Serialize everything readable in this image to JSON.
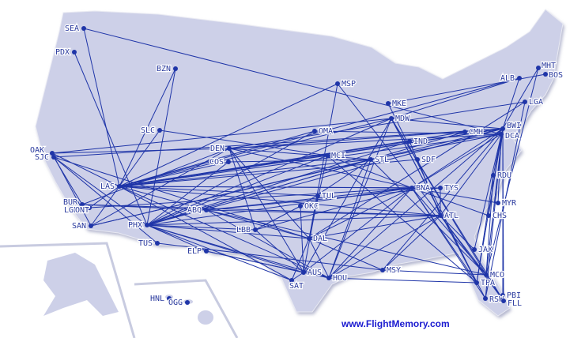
{
  "colors": {
    "land": "#cdd0e8",
    "route": "#1f35a8",
    "airport": "#1f35a8",
    "border": "#a8abc0"
  },
  "website": "www.FlightMemory.com",
  "airports": [
    {
      "code": "SEA",
      "lon": -122.3,
      "lat": 47.4
    },
    {
      "code": "PDX",
      "lon": -122.6,
      "lat": 45.6
    },
    {
      "code": "BZN",
      "lon": -111.2,
      "lat": 45.8
    },
    {
      "code": "MSP",
      "lon": -93.2,
      "lat": 44.9
    },
    {
      "code": "MKE",
      "lon": -87.9,
      "lat": 42.9
    },
    {
      "code": "MDW",
      "lon": -87.8,
      "lat": 41.8
    },
    {
      "code": "ALB",
      "lon": -73.8,
      "lat": 42.7
    },
    {
      "code": "MHT",
      "lon": -71.4,
      "lat": 42.9
    },
    {
      "code": "BOS",
      "lon": -71.0,
      "lat": 42.4
    },
    {
      "code": "LGA",
      "lon": -73.9,
      "lat": 40.8
    },
    {
      "code": "SLC",
      "lon": -112.0,
      "lat": 40.8
    },
    {
      "code": "OMA",
      "lon": -95.9,
      "lat": 41.3
    },
    {
      "code": "CMH",
      "lon": -82.9,
      "lat": 40.0
    },
    {
      "code": "BWI",
      "lon": -76.7,
      "lat": 39.2
    },
    {
      "code": "DCA",
      "lon": -77.0,
      "lat": 38.9
    },
    {
      "code": "IND",
      "lon": -86.3,
      "lat": 39.7
    },
    {
      "code": "DEN",
      "lon": -104.7,
      "lat": 39.9
    },
    {
      "code": "COS",
      "lon": -104.7,
      "lat": 38.8
    },
    {
      "code": "MCI",
      "lon": -94.7,
      "lat": 39.3
    },
    {
      "code": "STL",
      "lon": -90.4,
      "lat": 38.7
    },
    {
      "code": "SDF",
      "lon": -85.7,
      "lat": 38.2
    },
    {
      "code": "OAK",
      "lon": -122.2,
      "lat": 37.7
    },
    {
      "code": "SJC",
      "lon": -121.9,
      "lat": 37.4
    },
    {
      "code": "LAS",
      "lon": -115.2,
      "lat": 36.1
    },
    {
      "code": "BNA",
      "lon": -86.7,
      "lat": 36.1
    },
    {
      "code": "TYS",
      "lon": -84.0,
      "lat": 35.8
    },
    {
      "code": "TUL",
      "lon": -95.9,
      "lat": 36.2
    },
    {
      "code": "OKC",
      "lon": -97.6,
      "lat": 35.4
    },
    {
      "code": "ABQ",
      "lon": -106.6,
      "lat": 35.0
    },
    {
      "code": "RDU",
      "lon": -78.8,
      "lat": 35.9
    },
    {
      "code": "MYR",
      "lon": -78.9,
      "lat": 33.7
    },
    {
      "code": "CHS",
      "lon": -80.0,
      "lat": 32.9
    },
    {
      "code": "ATL",
      "lon": -84.4,
      "lat": 33.6
    },
    {
      "code": "BUR",
      "lon": -118.4,
      "lat": 34.2
    },
    {
      "code": "LGB",
      "lon": -118.2,
      "lat": 33.8
    },
    {
      "code": "ONT",
      "lon": -117.6,
      "lat": 34.1
    },
    {
      "code": "SAN",
      "lon": -117.2,
      "lat": 32.7
    },
    {
      "code": "PHX",
      "lon": -112.0,
      "lat": 33.4
    },
    {
      "code": "LBB",
      "lon": -101.8,
      "lat": 33.7
    },
    {
      "code": "DAL",
      "lon": -96.9,
      "lat": 32.8
    },
    {
      "code": "TUS",
      "lon": -110.9,
      "lat": 32.1
    },
    {
      "code": "ELP",
      "lon": -106.4,
      "lat": 31.8
    },
    {
      "code": "JAX",
      "lon": -81.7,
      "lat": 30.5
    },
    {
      "code": "MSY",
      "lon": -90.3,
      "lat": 30.0
    },
    {
      "code": "AUS",
      "lon": -97.7,
      "lat": 30.2
    },
    {
      "code": "HOU",
      "lon": -95.3,
      "lat": 29.6
    },
    {
      "code": "SAT",
      "lon": -98.5,
      "lat": 29.5
    },
    {
      "code": "MCO",
      "lon": -81.3,
      "lat": 28.4
    },
    {
      "code": "TPA",
      "lon": -82.5,
      "lat": 28.0
    },
    {
      "code": "PBI",
      "lon": -80.1,
      "lat": 26.7
    },
    {
      "code": "RSW",
      "lon": -81.8,
      "lat": 26.5
    },
    {
      "code": "FLL",
      "lon": -80.2,
      "lat": 26.1
    },
    {
      "code": "HNL",
      "lon": -157.9,
      "lat": 21.3
    },
    {
      "code": "OGG",
      "lon": -156.4,
      "lat": 20.9
    }
  ],
  "routes": [
    [
      "SEA",
      "DCA"
    ],
    [
      "SEA",
      "LAS"
    ],
    [
      "PDX",
      "PHX"
    ],
    [
      "BZN",
      "LAS"
    ],
    [
      "BZN",
      "PHX"
    ],
    [
      "MSP",
      "LAS"
    ],
    [
      "MSP",
      "DAL"
    ],
    [
      "MSP",
      "MCO"
    ],
    [
      "MKE",
      "TPA"
    ],
    [
      "MKE",
      "BOS"
    ],
    [
      "MDW",
      "LAS"
    ],
    [
      "MDW",
      "MCO"
    ],
    [
      "MDW",
      "TPA"
    ],
    [
      "MDW",
      "FLL"
    ],
    [
      "MDW",
      "RSW"
    ],
    [
      "MDW",
      "PHX"
    ],
    [
      "MDW",
      "OAK"
    ],
    [
      "MDW",
      "AUS"
    ],
    [
      "MDW",
      "BWI"
    ],
    [
      "MDW",
      "HOU"
    ],
    [
      "ALB",
      "LAS"
    ],
    [
      "ALB",
      "MDW"
    ],
    [
      "MHT",
      "BWI"
    ],
    [
      "MHT",
      "MCO"
    ],
    [
      "LGA",
      "DEN"
    ],
    [
      "LGA",
      "DAL"
    ],
    [
      "SLC",
      "LAS"
    ],
    [
      "SLC",
      "MCI"
    ],
    [
      "OMA",
      "LAS"
    ],
    [
      "OMA",
      "PHX"
    ],
    [
      "CMH",
      "LAS"
    ],
    [
      "CMH",
      "PHX"
    ],
    [
      "BWI",
      "LAS"
    ],
    [
      "BWI",
      "DEN"
    ],
    [
      "BWI",
      "MCI"
    ],
    [
      "BWI",
      "PHX"
    ],
    [
      "BWI",
      "SJC"
    ],
    [
      "BWI",
      "SAN"
    ],
    [
      "BWI",
      "MCO"
    ],
    [
      "BWI",
      "FLL"
    ],
    [
      "BWI",
      "PBI"
    ],
    [
      "BWI",
      "RSW"
    ],
    [
      "BWI",
      "JAX"
    ],
    [
      "BWI",
      "BNA"
    ],
    [
      "BWI",
      "MSY"
    ],
    [
      "BWI",
      "HOU"
    ],
    [
      "BWI",
      "TPA"
    ],
    [
      "BWI",
      "RDU"
    ],
    [
      "BWI",
      "ALB"
    ],
    [
      "DCA",
      "DEN"
    ],
    [
      "DCA",
      "OMA"
    ],
    [
      "DCA",
      "STL"
    ],
    [
      "DCA",
      "ATL"
    ],
    [
      "DCA",
      "MYR"
    ],
    [
      "DCA",
      "CHS"
    ],
    [
      "DCA",
      "BNA"
    ],
    [
      "DCA",
      "LAS"
    ],
    [
      "IND",
      "LAS"
    ],
    [
      "IND",
      "ATL"
    ],
    [
      "IND",
      "PHX"
    ],
    [
      "DEN",
      "OAK"
    ],
    [
      "DEN",
      "SAN"
    ],
    [
      "DEN",
      "BUR"
    ],
    [
      "DEN",
      "STL"
    ],
    [
      "DEN",
      "AUS"
    ],
    [
      "DEN",
      "BNA"
    ],
    [
      "DEN",
      "DAL"
    ],
    [
      "COS",
      "LAS"
    ],
    [
      "COS",
      "PHX"
    ],
    [
      "COS",
      "STL"
    ],
    [
      "MCI",
      "LAS"
    ],
    [
      "MCI",
      "TPA"
    ],
    [
      "MCI",
      "DAL"
    ],
    [
      "MCI",
      "BNA"
    ],
    [
      "MCI",
      "PHX"
    ],
    [
      "STL",
      "SAN"
    ],
    [
      "STL",
      "LAS"
    ],
    [
      "STL",
      "PHX"
    ],
    [
      "STL",
      "MCO"
    ],
    [
      "STL",
      "HOU"
    ],
    [
      "SDF",
      "LAS"
    ],
    [
      "SDF",
      "ATL"
    ],
    [
      "OAK",
      "LAS"
    ],
    [
      "OAK",
      "SAN"
    ],
    [
      "SJC",
      "BUR"
    ],
    [
      "SJC",
      "PHX"
    ],
    [
      "SJC",
      "TUS"
    ],
    [
      "SJC",
      "DAL"
    ],
    [
      "LAS",
      "BNA"
    ],
    [
      "LAS",
      "ABQ"
    ],
    [
      "LAS",
      "SAN"
    ],
    [
      "LAS",
      "LGB"
    ],
    [
      "LAS",
      "TUL"
    ],
    [
      "LAS",
      "ATL"
    ],
    [
      "LAS",
      "HOU"
    ],
    [
      "LAS",
      "TYS"
    ],
    [
      "LAS",
      "SAT"
    ],
    [
      "BNA",
      "PHX"
    ],
    [
      "BNA",
      "LGB"
    ],
    [
      "BNA",
      "DAL"
    ],
    [
      "BNA",
      "MCO"
    ],
    [
      "BNA",
      "MYR"
    ],
    [
      "BNA",
      "CHS"
    ],
    [
      "BNA",
      "RSW"
    ],
    [
      "BNA",
      "HOU"
    ],
    [
      "BNA",
      "AUS"
    ],
    [
      "BNA",
      "TPA"
    ],
    [
      "BNA",
      "LBB"
    ],
    [
      "TYS",
      "ABQ"
    ],
    [
      "TYS",
      "ATL"
    ],
    [
      "ABQ",
      "BUR"
    ],
    [
      "ABQ",
      "BNA"
    ],
    [
      "ABQ",
      "ATL"
    ],
    [
      "ABQ",
      "DAL"
    ],
    [
      "ABQ",
      "HOU"
    ],
    [
      "ABQ",
      "MCO"
    ],
    [
      "ATL",
      "BUR"
    ],
    [
      "ATL",
      "PHX"
    ],
    [
      "ATL",
      "DAL"
    ],
    [
      "ATL",
      "MSY"
    ],
    [
      "ATL",
      "HOU"
    ],
    [
      "ATL",
      "JAX"
    ],
    [
      "ATL",
      "FLL"
    ],
    [
      "PHX",
      "ELP"
    ],
    [
      "PHX",
      "LBB"
    ],
    [
      "PHX",
      "DAL"
    ],
    [
      "PHX",
      "HOU"
    ],
    [
      "PHX",
      "SAT"
    ],
    [
      "PHX",
      "AUS"
    ],
    [
      "LBB",
      "AUS"
    ],
    [
      "LBB",
      "DEN"
    ],
    [
      "DAL",
      "SAT"
    ],
    [
      "DAL",
      "HOU"
    ],
    [
      "DAL",
      "MSY"
    ],
    [
      "ELP",
      "AUS"
    ],
    [
      "ELP",
      "HOU"
    ],
    [
      "MSY",
      "MCO"
    ],
    [
      "HOU",
      "TPA"
    ],
    [
      "AUS",
      "SAT"
    ],
    [
      "MCO",
      "FLL"
    ],
    [
      "MCO",
      "RDU"
    ],
    [
      "TPA",
      "RDU"
    ],
    [
      "TUL",
      "AUS"
    ],
    [
      "OKC",
      "LBB"
    ],
    [
      "OKC",
      "AUS"
    ],
    [
      "OKC",
      "STL"
    ],
    [
      "MSY",
      "TUS"
    ],
    [
      "RSW",
      "LGA"
    ]
  ]
}
